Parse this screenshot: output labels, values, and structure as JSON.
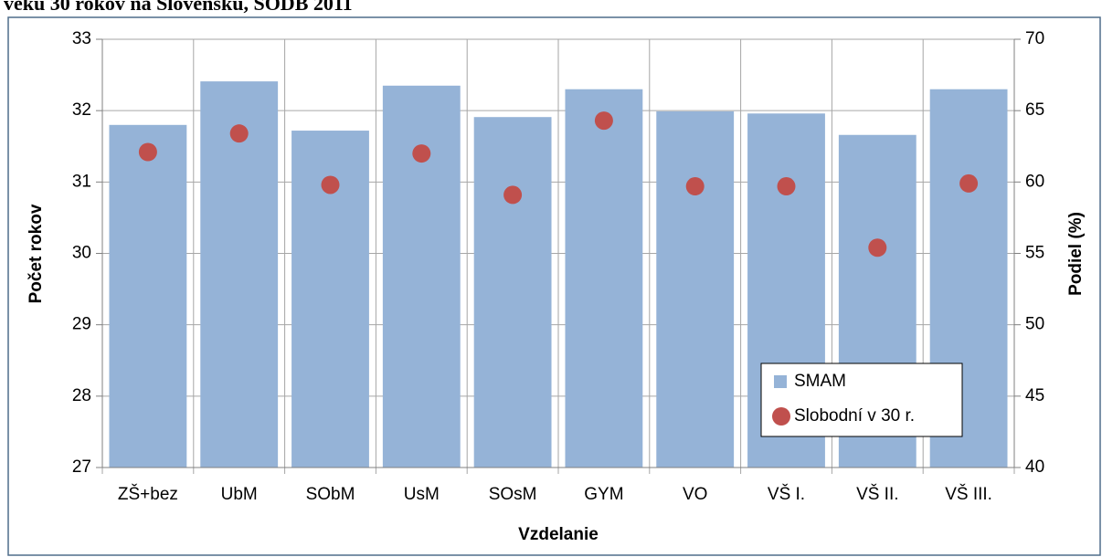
{
  "chart_data": {
    "type": "bar",
    "title": "veku 30 rokov na Slovensku, SODB 2011",
    "categories": [
      "ZŠ+bez",
      "UbM",
      "SObM",
      "UsM",
      "SOsM",
      "GYM",
      "VO",
      "VŠ I.",
      "VŠ II.",
      "VŠ III."
    ],
    "series": [
      {
        "name": "SMAM",
        "type": "bar",
        "color": "#95b3d7",
        "values": [
          31.8,
          32.41,
          31.72,
          32.35,
          31.91,
          32.3,
          31.99,
          31.96,
          31.66,
          32.3
        ]
      },
      {
        "name": "Slobodní v 30 r.",
        "type": "scatter",
        "axis": "y2",
        "color": "#c0504d",
        "values": [
          62.1,
          63.4,
          59.8,
          62.0,
          59.1,
          64.3,
          59.7,
          59.7,
          55.4,
          59.9
        ]
      }
    ],
    "ylabel": "Počet rokov",
    "y2label": "Podiel (%)",
    "xlabel": "Vzdelanie",
    "ylim": [
      27,
      33
    ],
    "yticks": [
      27,
      28,
      29,
      30,
      31,
      32,
      33
    ],
    "y2lim": [
      40,
      70
    ],
    "y2ticks": [
      40,
      45,
      50,
      55,
      60,
      65,
      70
    ],
    "grid": true,
    "legend": "lower right"
  }
}
